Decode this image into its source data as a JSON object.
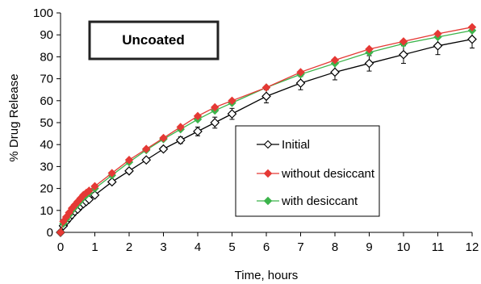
{
  "chart_data": {
    "type": "line",
    "title": "Uncoated",
    "xlabel": "Time, hours",
    "ylabel": "% Drug Release",
    "xlim": [
      0,
      12
    ],
    "ylim": [
      0,
      100
    ],
    "x_ticks": [
      0,
      1,
      2,
      3,
      4,
      5,
      6,
      7,
      8,
      9,
      10,
      11,
      12
    ],
    "y_ticks": [
      0,
      10,
      20,
      30,
      40,
      50,
      60,
      70,
      80,
      90,
      100
    ],
    "grid": false,
    "legend_position": "center-right",
    "series": [
      {
        "name": "Initial",
        "color": "#000000",
        "marker": "open-diamond",
        "x": [
          0,
          0.083,
          0.167,
          0.25,
          0.333,
          0.417,
          0.5,
          0.583,
          0.667,
          0.75,
          0.833,
          1,
          1.5,
          2,
          2.5,
          3,
          3.5,
          4,
          4.5,
          5,
          6,
          7,
          8,
          9,
          10,
          11,
          12
        ],
        "y": [
          0,
          3,
          5,
          6.5,
          8,
          9.5,
          10.5,
          12,
          13,
          14,
          15,
          17,
          23,
          28,
          33,
          38,
          42,
          46,
          50,
          54,
          62,
          68,
          73,
          77,
          81,
          85,
          88
        ],
        "error": [
          0,
          0,
          0,
          0,
          0,
          0,
          0,
          0,
          0,
          0,
          0,
          0.5,
          0.5,
          1,
          1,
          1,
          1.5,
          2,
          2.5,
          2.5,
          3,
          3,
          3.5,
          3.5,
          4,
          4,
          4
        ]
      },
      {
        "name": "without desiccant",
        "color": "#e53935",
        "marker": "filled-diamond",
        "x": [
          0,
          0.083,
          0.167,
          0.25,
          0.333,
          0.417,
          0.5,
          0.583,
          0.667,
          0.75,
          0.833,
          1,
          1.5,
          2,
          2.5,
          3,
          3.5,
          4,
          4.5,
          5,
          6,
          7,
          8,
          9,
          10,
          11,
          12
        ],
        "y": [
          0,
          5,
          7,
          9,
          11,
          12.5,
          14,
          15.5,
          17,
          18,
          19,
          21,
          27,
          33,
          38,
          43,
          48,
          53,
          57,
          60,
          66,
          73,
          78.5,
          83.5,
          87,
          90.5,
          93.5
        ]
      },
      {
        "name": "with desiccant",
        "color": "#3cb44b",
        "marker": "filled-diamond",
        "x": [
          0,
          0.083,
          0.167,
          0.25,
          0.333,
          0.417,
          0.5,
          0.583,
          0.667,
          0.75,
          0.833,
          1,
          1.5,
          2,
          2.5,
          3,
          3.5,
          4,
          4.5,
          5,
          6,
          7,
          8,
          9,
          10,
          11,
          12
        ],
        "y": [
          0,
          4,
          6,
          8,
          10,
          11.5,
          13,
          14.5,
          16,
          17,
          18,
          20,
          26,
          32,
          37.5,
          42.5,
          47,
          51.5,
          55.5,
          59,
          66,
          72,
          77,
          82,
          86,
          89,
          92
        ]
      }
    ]
  }
}
